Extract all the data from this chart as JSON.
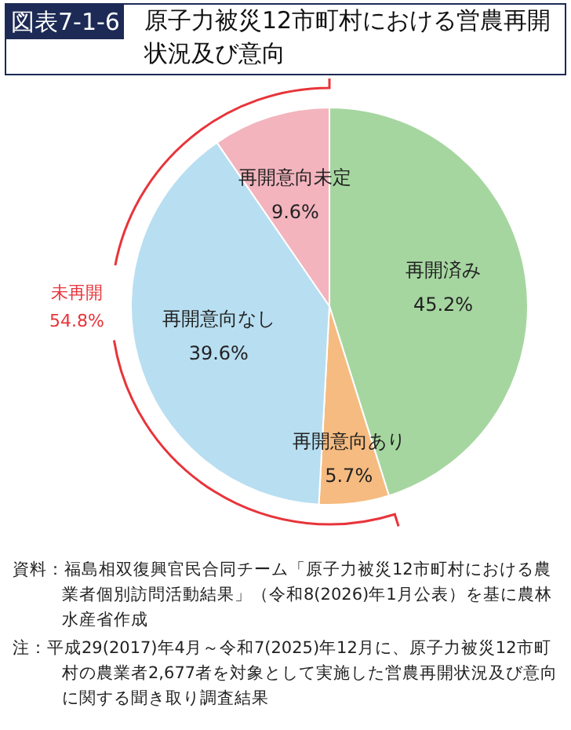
{
  "chart_data": {
    "type": "pie",
    "subtitle": "図表7-1-6",
    "title": "原子力被災12市町村における営農再開状況及び意向",
    "categories": [
      "再開済み",
      "再開意向あり",
      "再開意向なし",
      "再開意向未定"
    ],
    "values": [
      45.2,
      5.7,
      39.6,
      9.6
    ],
    "colors": [
      "#a6d6a0",
      "#f6bb80",
      "#b8def1",
      "#f3b4be"
    ],
    "value_labels": [
      "45.2%",
      "5.7%",
      "39.6%",
      "9.6%"
    ],
    "annotations": [
      "未再開",
      "54.8%",
      "資料：福島相双復興官民合同チーム「原子力被災12市町村における農業者個別訪問活動結果」（令和8(2026)年1月公表）を基に農林水産省作成",
      "注：平成29(2017)年4月～令和7(2025)年12月に、原子力被災12市町村の農業者2,677者を対象として実施した営農再開状況及び意向に関する聞き取り調査結果"
    ],
    "legend": false
  }
}
